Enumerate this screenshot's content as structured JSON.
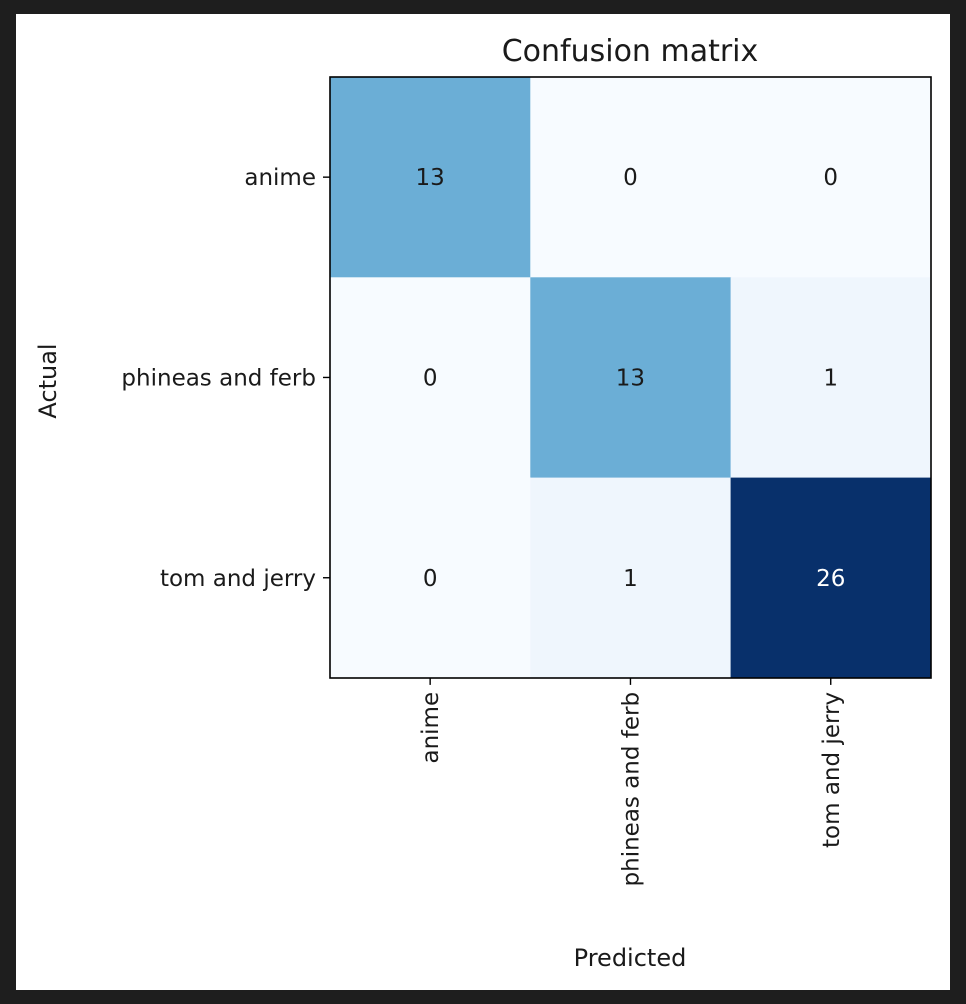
{
  "chart_data": {
    "type": "heatmap",
    "title": "Confusion matrix",
    "xlabel": "Predicted",
    "ylabel": "Actual",
    "x_categories": [
      "anime",
      "phineas and ferb",
      "tom and jerry"
    ],
    "y_categories": [
      "anime",
      "phineas and ferb",
      "tom and jerry"
    ],
    "values": [
      [
        13,
        0,
        0
      ],
      [
        0,
        13,
        1
      ],
      [
        0,
        1,
        26
      ]
    ],
    "colormap": "Blues",
    "value_range": [
      0,
      26
    ],
    "grid": false
  },
  "colors": {
    "background": "#1e1e1e",
    "frame": "#ffffff",
    "text_dark": "#1a1a1a",
    "text_light": "#ffffff"
  }
}
